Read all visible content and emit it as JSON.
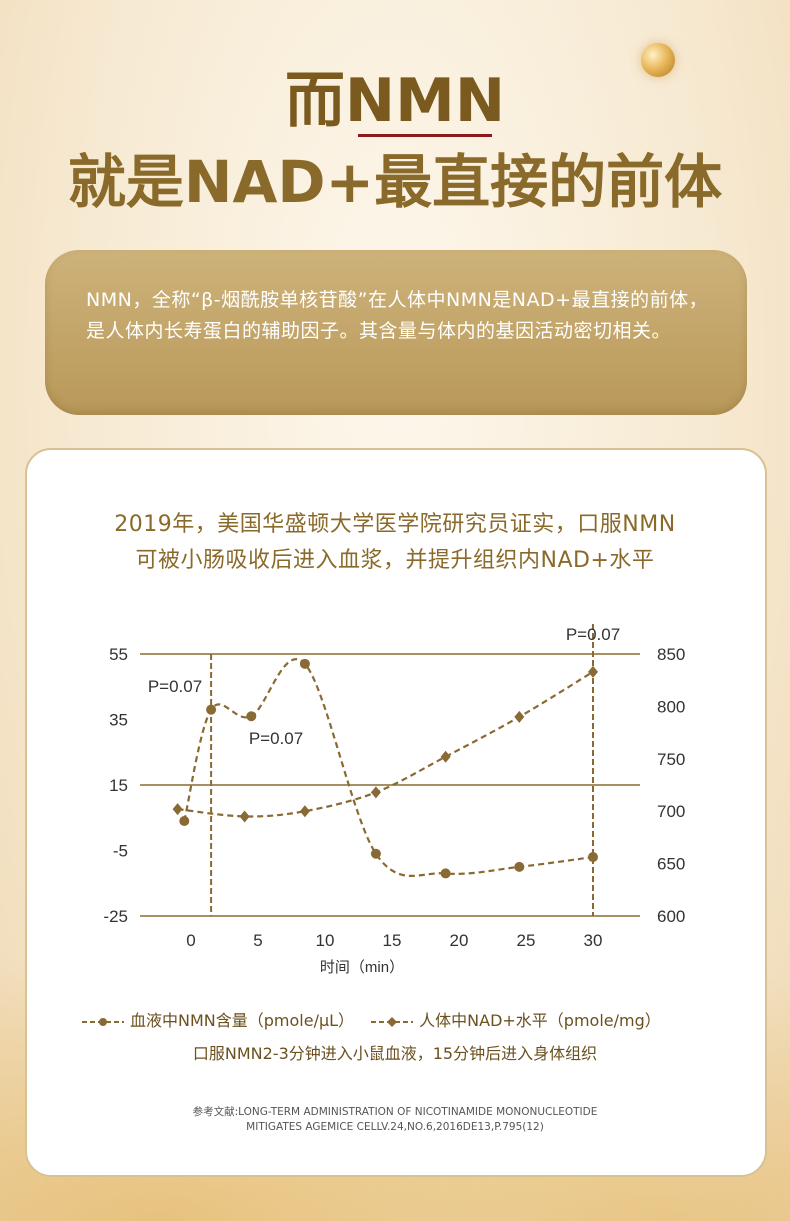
{
  "header": {
    "line1_prefix": "而",
    "line1_highlight": "NMN",
    "line2": "就是NAD+最直接的前体"
  },
  "intro": {
    "text": "NMN，全称“β-烟酰胺单核苷酸”在人体中NMN是NAD+最直接的前体，是人体内长寿蛋白的辅助因子。其含量与体内的基因活动密切相关。"
  },
  "study": {
    "line1": "2019年，美国华盛顿大学医学院研究员证实，口服NMN",
    "line2": "可被小肠吸收后进入血浆，并提升组织内NAD+水平"
  },
  "chart_data": {
    "type": "line",
    "x": [
      0,
      5,
      10,
      15,
      20,
      25,
      30
    ],
    "x_ticks": [
      "0",
      "5",
      "10",
      "15",
      "20",
      "25",
      "30"
    ],
    "xlabel": "时间（min）",
    "y_left_ticks": [
      "55",
      "35",
      "15",
      "-5",
      "-25"
    ],
    "y_right_ticks": [
      "850",
      "800",
      "750",
      "700",
      "650",
      "600"
    ],
    "ylim_left": [
      -25,
      55
    ],
    "ylim_right": [
      600,
      850
    ],
    "series": [
      {
        "name": "血液中NMN含量（pmole/μL）",
        "axis": "left",
        "marker": "circle",
        "points": [
          [
            -0.5,
            4
          ],
          [
            1.5,
            38
          ],
          [
            4.5,
            36
          ],
          [
            8.5,
            52
          ],
          [
            13.8,
            -6
          ],
          [
            19,
            -12
          ],
          [
            24.5,
            -10
          ],
          [
            30,
            -7
          ]
        ]
      },
      {
        "name": "人体中NAD+水平（pmole/mg）",
        "axis": "right",
        "marker": "diamond",
        "points": [
          [
            -1,
            702
          ],
          [
            4,
            695
          ],
          [
            8.5,
            700
          ],
          [
            13.8,
            718
          ],
          [
            19,
            752
          ],
          [
            24.5,
            790
          ],
          [
            30,
            833
          ]
        ]
      }
    ],
    "annotations": [
      "P=0.07",
      "P=0.07",
      "P=0.07"
    ],
    "color": "#8a6a34"
  },
  "footer": {
    "note": "口服NMN2-3分钟进入小鼠血液，15分钟后进入身体组织",
    "ref_line1": "参考文献:LONG-TERM ADMINISTRATION OF NICOTINAMIDE MONONUCLEOTIDE",
    "ref_line2": "MITIGATES AGEMICE CELLV.24,NO.6,2016DE13,P.795(12)"
  }
}
